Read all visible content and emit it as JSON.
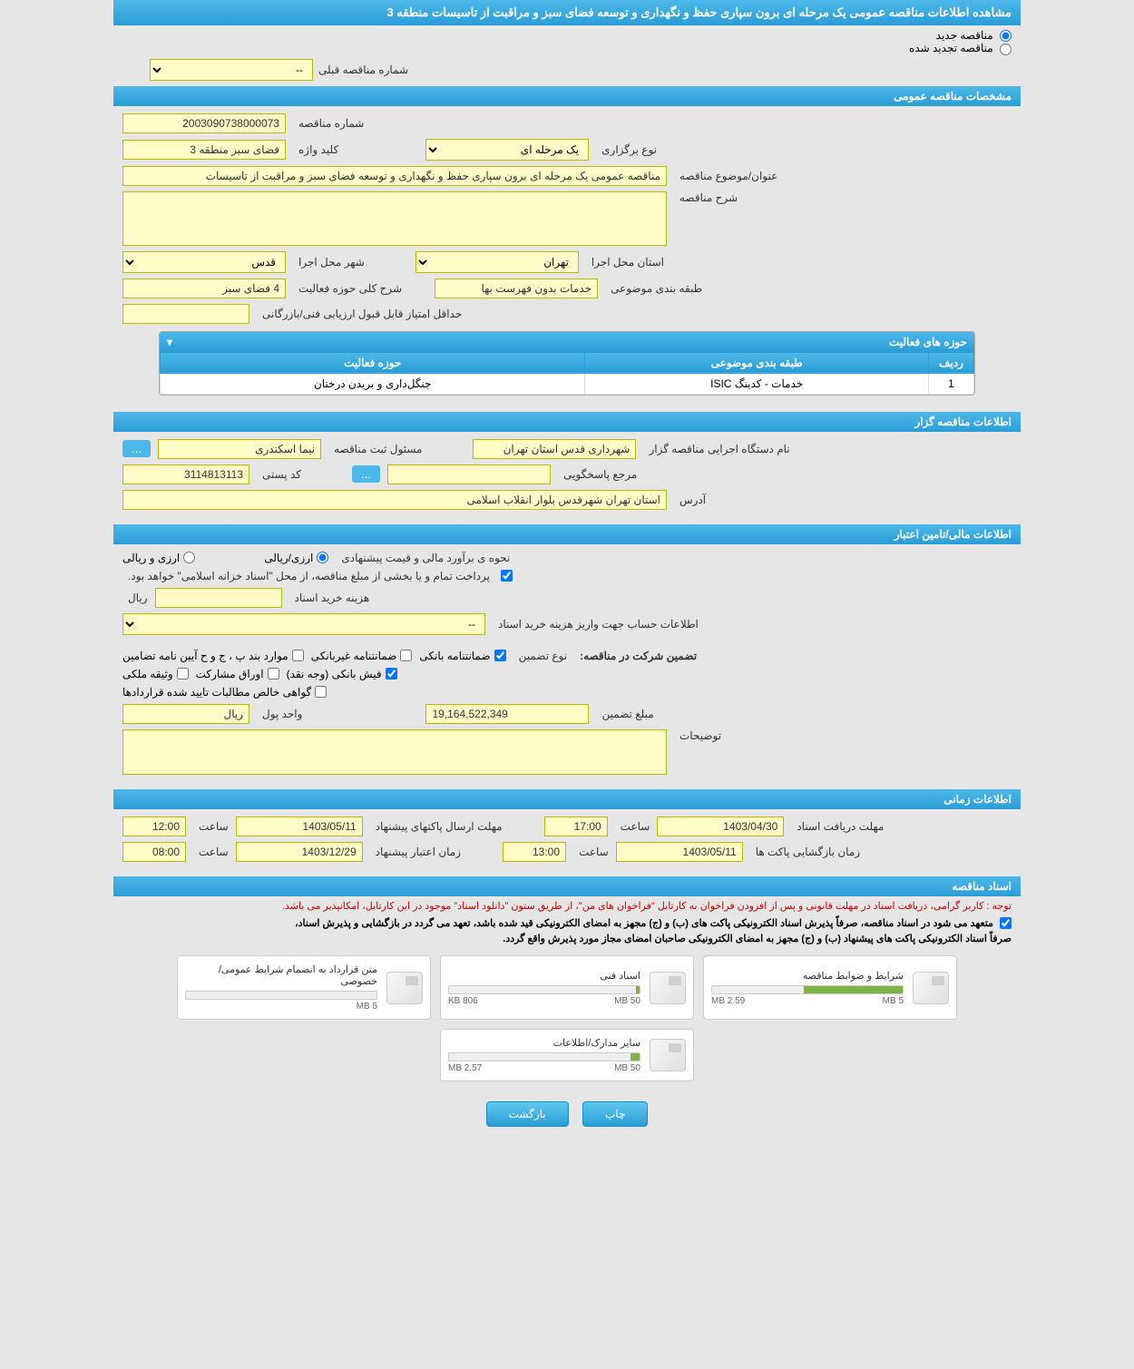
{
  "header": {
    "title": "مشاهده اطلاعات مناقصه عمومی یک مرحله ای برون سپاری حفظ و نگهداری و توسعه فضای سبز و مراقبت از تاسیسات منطقه 3"
  },
  "tender_status": {
    "new_label": "مناقصه جدید",
    "renewed_label": "مناقصه تجدید شده",
    "new_checked": true,
    "prev_number_label": "شماره مناقصه قبلی",
    "prev_number_value": "--"
  },
  "sections": {
    "general": "مشخصات مناقصه عمومی",
    "holder": "اطلاعات مناقصه گزار",
    "financial": "اطلاعات مالی/تامین اعتبار",
    "timing": "اطلاعات زمانی",
    "documents": "اسناد مناقصه"
  },
  "general": {
    "number_label": "شماره مناقصه",
    "number": "2003090738000073",
    "type_label": "نوع برگزاری",
    "type": "یک مرحله ای",
    "keyword_label": "کلید واژه",
    "keyword": "فضای سبز منطقه 3",
    "subject_label": "عنوان/موضوع مناقصه",
    "subject": "مناقصه عمومی یک مرحله ای برون سپاری حفظ و نگهداری و توسعه فضای سبز و مراقبت از تاسیسات",
    "description_label": "شرح مناقصه",
    "description": "",
    "province_label": "استان محل اجرا",
    "province": "تهران",
    "city_label": "شهر محل اجرا",
    "city": "قدس",
    "topic_class_label": "طبقه بندی موضوعی",
    "topic_class": "خدمات بدون فهرست بها",
    "activity_desc_label": "شرح کلی حوزه فعالیت",
    "activity_desc": "4 فضای سبز",
    "min_score_label": "حداقل امتیاز قابل قبول ارزیابی فنی/بازرگانی",
    "min_score": ""
  },
  "activity_table": {
    "title": "حوزه های فعالیت",
    "col_row": "ردیف",
    "col_topic": "طبقه بندی موضوعی",
    "col_field": "حوزه فعالیت",
    "rows": [
      {
        "n": "1",
        "topic": "خدمات - کدینگ ISIC",
        "field": "جنگل‌داری و بریدن درختان"
      }
    ]
  },
  "holder": {
    "org_label": "نام دستگاه اجرایی مناقصه گزار",
    "org": "شهرداری قدس استان تهران",
    "reg_person_label": "مسئول ثبت مناقصه",
    "reg_person": "نیما اسکندری",
    "contact_label": "مرجع پاسخگویی",
    "contact": "",
    "ellipsis": "...",
    "postal_label": "کد پستی",
    "postal": "3114813113",
    "address_label": "آدرس",
    "address": "استان تهران شهرقدس بلوار انقلاب اسلامی"
  },
  "financial": {
    "est_label": "نحوه ی برآورد مالی و قیمت پیشنهادی",
    "currency_riyal": "ارزی/ریالی",
    "currency_both": "ارزی و ریالی",
    "payment_note": "پرداخت تمام و یا بخشی از مبلغ مناقصه، از محل \"اسناد خزانه اسلامی\" خواهد بود.",
    "doc_cost_label": "هزینه خرید اسناد",
    "doc_cost": "",
    "doc_cost_unit": "ریال",
    "deposit_account_label": "اطلاعات حساب جهت واریز هزینه خرید اسناد",
    "deposit_account": "--",
    "guarantee_label": "تضمین شرکت در مناقصه:",
    "guarantee_type_label": "نوع تضمین",
    "g_bank": "ضمانتنامه بانکی",
    "g_nonbank": "ضمانتنامه غیربانکی",
    "g_regulation": "موارد بند پ ، ج و ح آیین نامه تضامین",
    "g_cash": "فیش بانکی (وجه نقد)",
    "g_bonds": "اوراق مشارکت",
    "g_property": "وثیقه ملکی",
    "g_receivables": "گواهی خالص مطالبات تایید شده قراردادها",
    "amount_label": "مبلغ تضمین",
    "amount": "19,164,522,349",
    "unit_label": "واحد پول",
    "unit": "ریال",
    "notes_label": "توضیحات",
    "notes": ""
  },
  "timing": {
    "receive_label": "مهلت دریافت اسناد",
    "receive_date": "1403/04/30",
    "receive_time_label": "ساعت",
    "receive_time": "17:00",
    "submit_label": "مهلت ارسال پاکتهای پیشنهاد",
    "submit_date": "1403/05/11",
    "submit_time_label": "ساعت",
    "submit_time": "12:00",
    "open_label": "زمان بازگشایی پاکت ها",
    "open_date": "1403/05/11",
    "open_time_label": "ساعت",
    "open_time": "13:00",
    "validity_label": "زمان اعتبار پیشنهاد",
    "validity_date": "1403/12/29",
    "validity_time_label": "ساعت",
    "validity_time": "08:00"
  },
  "documents": {
    "note1": "توجه : کاربر گرامی، دریافت اسناد در مهلت قانونی و پس از افزودن فراخوان به کارتابل \"فراخوان های من\"، از طریق ستون \"دانلود اسناد\" موجود در این کارتابل، امکانپذیر می باشد.",
    "note2": "متعهد می شود در اسناد مناقصه، صرفاً پذیرش اسناد الکترونیکی پاکت های (ب) و (ج) مجهز به امضای الکترونیکی قید شده باشد، تعهد می گردد در بازگشایی و پذیرش اسناد،",
    "note3": "صرفاً اسناد الکترونیکی پاکت های پیشنهاد (ب) و (ج) مجهز به امضای الکترونیکی صاحبان امضای مجاز مورد پذیرش واقع گردد.",
    "files": [
      {
        "title": "شرایط و ضوابط مناقصه",
        "used": "2.59 MB",
        "cap": "5 MB",
        "pct": 52
      },
      {
        "title": "اسناد فنی",
        "used": "806 KB",
        "cap": "50 MB",
        "pct": 2
      },
      {
        "title": "متن قرارداد به انضمام شرایط عمومی/خصوصی",
        "used": "",
        "cap": "5 MB",
        "pct": 0
      },
      {
        "title": "سایر مدارک/اطلاعات",
        "used": "2.57 MB",
        "cap": "50 MB",
        "pct": 5
      }
    ]
  },
  "buttons": {
    "print": "چاپ",
    "back": "بازگشت"
  },
  "colors": {
    "section_bg_top": "#4db8e8",
    "section_bg_bottom": "#2a9dd6",
    "field_bg": "#fffcc8",
    "field_border": "#c0b800",
    "body_bg": "#e6e6e6",
    "progress_fill": "#7cb342",
    "note_red": "#cc0000"
  }
}
